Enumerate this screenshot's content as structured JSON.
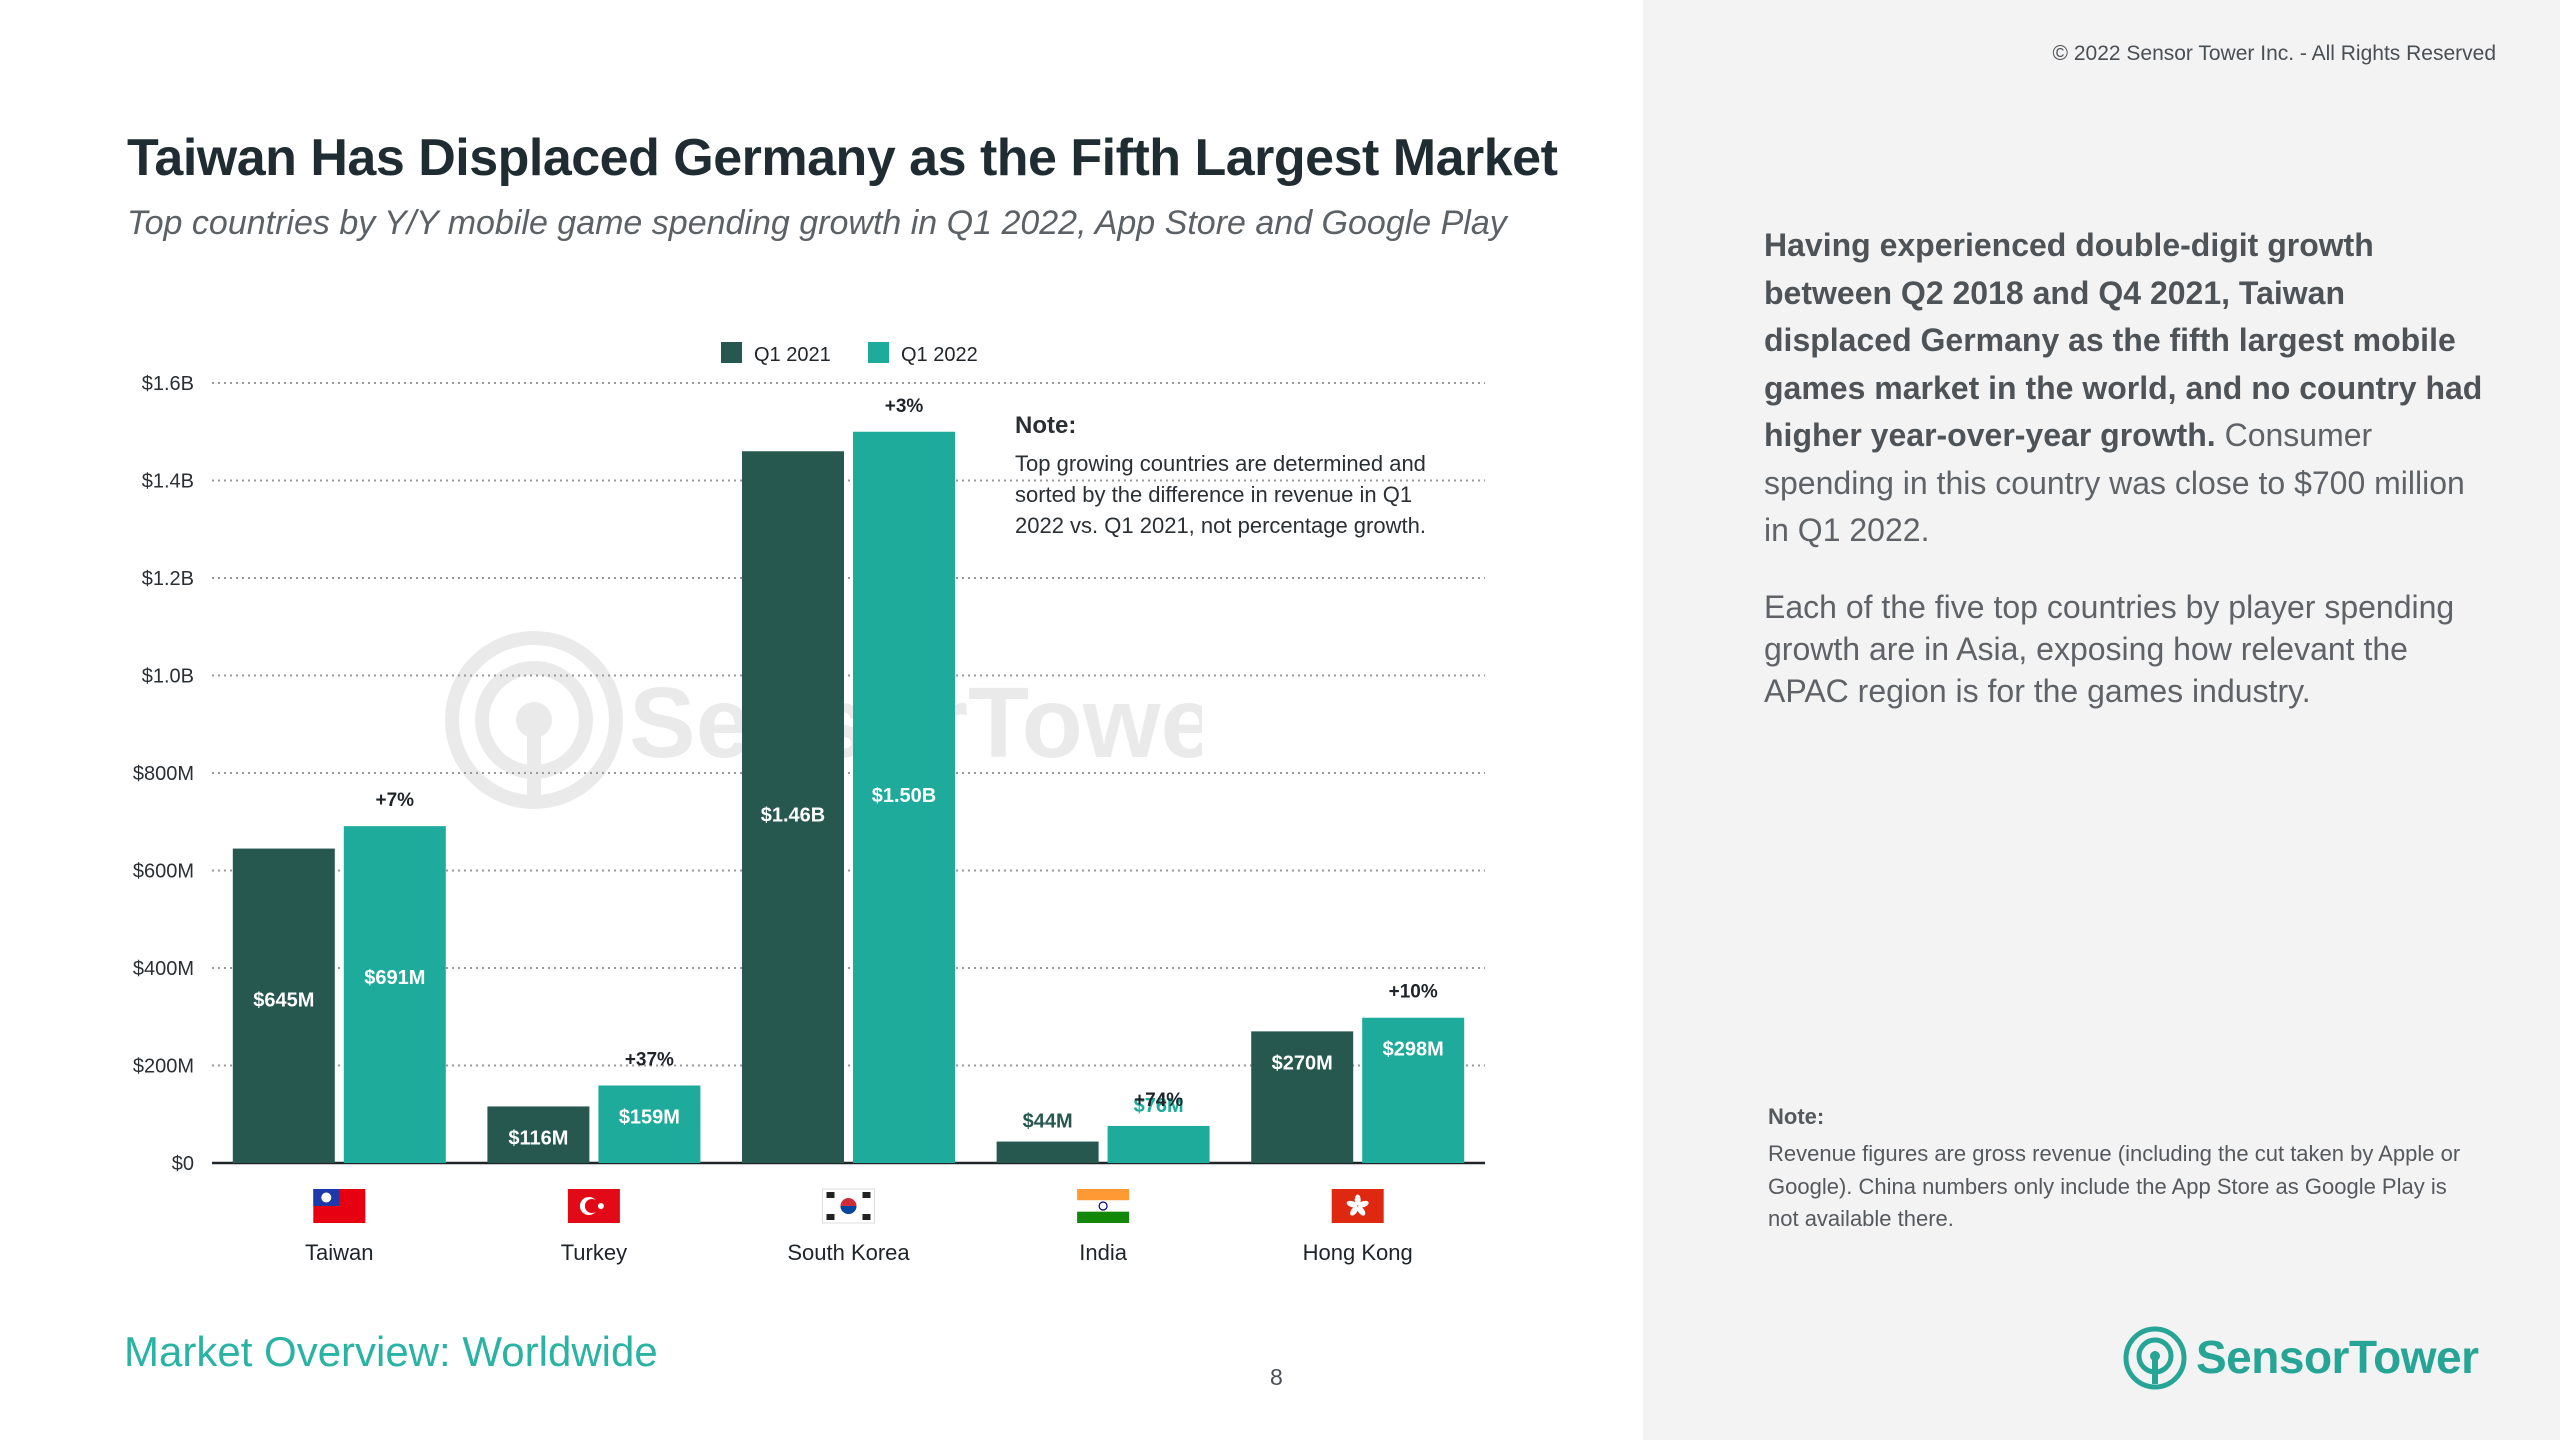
{
  "copyright": "© 2022 Sensor Tower Inc. - All Rights Reserved",
  "title": "Taiwan Has Displaced Germany as the Fifth Largest Market",
  "subtitle": "Top countries by Y/Y mobile game spending growth in Q1 2022, App Store and Google Play",
  "chart_note": {
    "heading": "Note:",
    "body": "Top growing countries are determined and sorted by the difference in revenue in Q1 2022 vs. Q1 2021, not percentage growth."
  },
  "summary": {
    "bold": "Having experienced double-digit growth between Q2 2018 and Q4 2021, Taiwan displaced Germany as the fifth largest mobile games market in the world, and no country had higher year-over-year growth.",
    "rest": " Consumer spending in this country was close to $700 million in Q1 2022.",
    "paragraph2": "Each of the five top countries by player spending growth are in Asia, exposing how relevant the APAC region is for the games industry."
  },
  "footnote": {
    "heading": "Note:",
    "body": "Revenue figures are gross revenue (including the cut taken by Apple or Google). China numbers only include the App Store as Google Play is not available there."
  },
  "footer_left": "Market Overview: Worldwide",
  "page_number": "8",
  "logo_text": "SensorTower",
  "watermark_text": "SensorTower",
  "colors": {
    "q1_2021": "#265850",
    "q1_2022": "#1eab9b",
    "accent": "#2ab3a4"
  },
  "chart_data": {
    "type": "bar",
    "categories": [
      "Taiwan",
      "Turkey",
      "South Korea",
      "India",
      "Hong Kong"
    ],
    "flag_icons": [
      "taiwan-flag-icon",
      "turkey-flag-icon",
      "south-korea-flag-icon",
      "india-flag-icon",
      "hong-kong-flag-icon"
    ],
    "series": [
      {
        "name": "Q1 2021",
        "values": [
          645,
          116,
          1460,
          44,
          270
        ],
        "labels": [
          "$645M",
          "$116M",
          "$1.46B",
          "$44M",
          "$270M"
        ]
      },
      {
        "name": "Q1 2022",
        "values": [
          691,
          159,
          1500,
          76,
          298
        ],
        "labels": [
          "$691M",
          "$159M",
          "$1.50B",
          "$76M",
          "$298M"
        ]
      }
    ],
    "growth_labels": [
      "+7%",
      "+37%",
      "+3%",
      "+74%",
      "+10%"
    ],
    "units": "USD millions",
    "yticks": [
      0,
      200,
      400,
      600,
      800,
      1000,
      1200,
      1400,
      1600
    ],
    "ytick_labels": [
      "$0",
      "$200M",
      "$400M",
      "$600M",
      "$800M",
      "$1.0B",
      "$1.2B",
      "$1.4B",
      "$1.6B"
    ],
    "ylim": [
      0,
      1600
    ],
    "grid": true,
    "legend_position": "top-center"
  }
}
